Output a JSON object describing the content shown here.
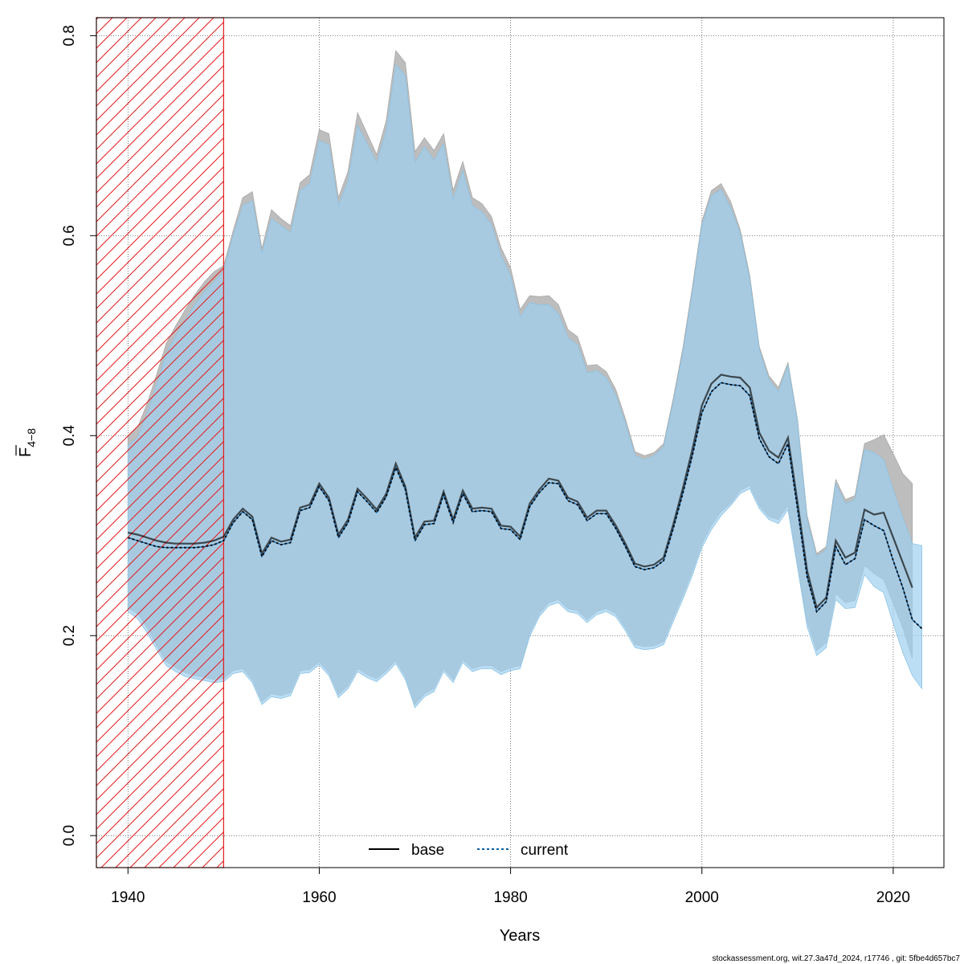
{
  "chart_data": {
    "type": "line",
    "xlabel": "Years",
    "ylabel_main": "F",
    "ylabel_sub": "4−8",
    "xlim": [
      1936.7,
      1925.5
    ],
    "xlim_real": [
      1936.7,
      1925.5
    ],
    "x_axis": {
      "min": 1936.7,
      "max": 2025.3,
      "ticks": [
        1940,
        1960,
        1980,
        2000,
        2020
      ]
    },
    "y_axis": {
      "min": -0.032,
      "max": 0.818,
      "ticks": [
        0.0,
        0.2,
        0.4,
        0.6,
        0.8
      ],
      "tick_labels": [
        "0.0",
        "0.2",
        "0.4",
        "0.6",
        "0.8"
      ]
    },
    "grid": true,
    "excluded_period": {
      "from": 1936.7,
      "to": 1950,
      "pattern": "hatched",
      "color": "#e31a1c"
    },
    "colors": {
      "base_line": "#000000",
      "base_band": "#bdbdbd",
      "current_line": "#0b5fa5",
      "current_band": "#9fd0ef",
      "overlap_band": "#a5c4d5"
    },
    "legend": {
      "position": "bottom-center",
      "entries": [
        {
          "label": "base",
          "style": "solid"
        },
        {
          "label": "current",
          "style": "dashed"
        }
      ]
    },
    "years": [
      1940,
      1941,
      1942,
      1943,
      1944,
      1945,
      1946,
      1947,
      1948,
      1949,
      1950,
      1951,
      1952,
      1953,
      1954,
      1955,
      1956,
      1957,
      1958,
      1959,
      1960,
      1961,
      1962,
      1963,
      1964,
      1965,
      1966,
      1967,
      1968,
      1969,
      1970,
      1971,
      1972,
      1973,
      1974,
      1975,
      1976,
      1977,
      1978,
      1979,
      1980,
      1981,
      1982,
      1983,
      1984,
      1985,
      1986,
      1987,
      1988,
      1989,
      1990,
      1991,
      1992,
      1993,
      1994,
      1995,
      1996,
      1997,
      1998,
      1999,
      2000,
      2001,
      2002,
      2003,
      2004,
      2005,
      2006,
      2007,
      2008,
      2009,
      2010,
      2011,
      2012,
      2013,
      2014,
      2015,
      2016,
      2017,
      2018,
      2019,
      2020,
      2021,
      2022,
      2023
    ],
    "series": [
      {
        "name": "base",
        "values": [
          0.303,
          0.301,
          0.298,
          0.295,
          0.293,
          0.292,
          0.292,
          0.292,
          0.293,
          0.295,
          0.299,
          0.316,
          0.327,
          0.319,
          0.282,
          0.298,
          0.294,
          0.296,
          0.328,
          0.331,
          0.352,
          0.338,
          0.301,
          0.316,
          0.347,
          0.337,
          0.326,
          0.342,
          0.372,
          0.349,
          0.298,
          0.314,
          0.315,
          0.344,
          0.316,
          0.345,
          0.327,
          0.328,
          0.327,
          0.31,
          0.309,
          0.299,
          0.332,
          0.346,
          0.357,
          0.355,
          0.338,
          0.334,
          0.318,
          0.325,
          0.325,
          0.31,
          0.292,
          0.272,
          0.269,
          0.271,
          0.278,
          0.311,
          0.347,
          0.386,
          0.43,
          0.452,
          0.461,
          0.459,
          0.458,
          0.448,
          0.403,
          0.385,
          0.378,
          0.398,
          0.333,
          0.265,
          0.228,
          0.238,
          0.295,
          0.278,
          0.283,
          0.326,
          0.321,
          0.323,
          0.298,
          0.273,
          0.248,
          null
        ],
        "lower": [
          0.228,
          0.222,
          0.208,
          0.19,
          0.174,
          0.168,
          0.163,
          0.16,
          0.158,
          0.156,
          0.157,
          0.165,
          0.167,
          0.156,
          0.134,
          0.142,
          0.14,
          0.143,
          0.165,
          0.166,
          0.174,
          0.163,
          0.141,
          0.15,
          0.167,
          0.161,
          0.157,
          0.165,
          0.175,
          0.159,
          0.131,
          0.142,
          0.147,
          0.167,
          0.156,
          0.176,
          0.167,
          0.17,
          0.17,
          0.164,
          0.168,
          0.17,
          0.202,
          0.222,
          0.233,
          0.236,
          0.227,
          0.225,
          0.216,
          0.224,
          0.227,
          0.222,
          0.208,
          0.191,
          0.189,
          0.19,
          0.194,
          0.218,
          0.24,
          0.264,
          0.292,
          0.31,
          0.324,
          0.332,
          0.345,
          0.35,
          0.33,
          0.319,
          0.316,
          0.33,
          0.272,
          0.214,
          0.185,
          0.193,
          0.242,
          0.233,
          0.235,
          0.27,
          0.262,
          0.256,
          0.232,
          0.208,
          0.177,
          null
        ],
        "upper": [
          0.4,
          0.408,
          0.432,
          0.461,
          0.492,
          0.51,
          0.526,
          0.541,
          0.554,
          0.564,
          0.57,
          0.605,
          0.638,
          0.644,
          0.587,
          0.626,
          0.617,
          0.61,
          0.653,
          0.661,
          0.706,
          0.702,
          0.638,
          0.664,
          0.723,
          0.702,
          0.681,
          0.715,
          0.785,
          0.773,
          0.684,
          0.698,
          0.685,
          0.702,
          0.645,
          0.674,
          0.638,
          0.632,
          0.619,
          0.588,
          0.568,
          0.526,
          0.54,
          0.539,
          0.54,
          0.531,
          0.506,
          0.499,
          0.47,
          0.471,
          0.464,
          0.446,
          0.417,
          0.384,
          0.38,
          0.383,
          0.392,
          0.437,
          0.487,
          0.548,
          0.614,
          0.645,
          0.652,
          0.634,
          0.606,
          0.56,
          0.489,
          0.46,
          0.448,
          0.473,
          0.416,
          0.32,
          0.282,
          0.289,
          0.356,
          0.336,
          0.34,
          0.392,
          0.396,
          0.401,
          0.382,
          0.362,
          0.352,
          null
        ]
      },
      {
        "name": "current",
        "values": [
          0.298,
          0.295,
          0.292,
          0.289,
          0.288,
          0.288,
          0.288,
          0.288,
          0.289,
          0.291,
          0.295,
          0.313,
          0.324,
          0.316,
          0.279,
          0.295,
          0.291,
          0.293,
          0.325,
          0.328,
          0.349,
          0.335,
          0.298,
          0.313,
          0.344,
          0.334,
          0.323,
          0.339,
          0.368,
          0.346,
          0.295,
          0.311,
          0.312,
          0.341,
          0.313,
          0.342,
          0.324,
          0.325,
          0.324,
          0.307,
          0.306,
          0.296,
          0.329,
          0.343,
          0.353,
          0.352,
          0.335,
          0.331,
          0.315,
          0.322,
          0.322,
          0.307,
          0.289,
          0.269,
          0.266,
          0.268,
          0.275,
          0.307,
          0.342,
          0.38,
          0.423,
          0.444,
          0.453,
          0.451,
          0.45,
          0.44,
          0.397,
          0.379,
          0.372,
          0.392,
          0.327,
          0.259,
          0.224,
          0.234,
          0.289,
          0.271,
          0.277,
          0.316,
          0.31,
          0.305,
          0.275,
          0.248,
          0.216,
          0.207
        ],
        "lower": [
          0.224,
          0.217,
          0.203,
          0.186,
          0.17,
          0.164,
          0.159,
          0.157,
          0.155,
          0.153,
          0.154,
          0.162,
          0.164,
          0.153,
          0.131,
          0.139,
          0.137,
          0.14,
          0.162,
          0.163,
          0.171,
          0.16,
          0.138,
          0.147,
          0.164,
          0.158,
          0.154,
          0.162,
          0.172,
          0.156,
          0.128,
          0.139,
          0.144,
          0.164,
          0.153,
          0.173,
          0.164,
          0.167,
          0.167,
          0.161,
          0.165,
          0.167,
          0.199,
          0.219,
          0.23,
          0.233,
          0.224,
          0.222,
          0.213,
          0.221,
          0.224,
          0.219,
          0.205,
          0.188,
          0.186,
          0.187,
          0.191,
          0.214,
          0.236,
          0.26,
          0.288,
          0.306,
          0.32,
          0.33,
          0.342,
          0.347,
          0.327,
          0.316,
          0.312,
          0.326,
          0.268,
          0.209,
          0.18,
          0.188,
          0.236,
          0.227,
          0.228,
          0.261,
          0.249,
          0.243,
          0.212,
          0.183,
          0.16,
          0.147
        ],
        "upper": [
          0.39,
          0.398,
          0.422,
          0.451,
          0.482,
          0.5,
          0.516,
          0.531,
          0.544,
          0.554,
          0.565,
          0.6,
          0.63,
          0.635,
          0.582,
          0.617,
          0.61,
          0.603,
          0.645,
          0.652,
          0.695,
          0.691,
          0.63,
          0.655,
          0.71,
          0.692,
          0.673,
          0.705,
          0.771,
          0.76,
          0.673,
          0.689,
          0.675,
          0.692,
          0.636,
          0.665,
          0.63,
          0.624,
          0.611,
          0.58,
          0.56,
          0.519,
          0.533,
          0.531,
          0.531,
          0.522,
          0.498,
          0.491,
          0.463,
          0.465,
          0.458,
          0.44,
          0.412,
          0.38,
          0.376,
          0.38,
          0.389,
          0.433,
          0.482,
          0.543,
          0.61,
          0.64,
          0.646,
          0.628,
          0.602,
          0.556,
          0.486,
          0.456,
          0.444,
          0.47,
          0.413,
          0.316,
          0.279,
          0.286,
          0.352,
          0.332,
          0.336,
          0.386,
          0.383,
          0.376,
          0.346,
          0.318,
          0.292,
          0.29
        ]
      }
    ]
  },
  "footer": {
    "text": "stockassessment.org, wit.27.3a47d_2024, r17746 , git: 5fbe4d657bc7"
  }
}
